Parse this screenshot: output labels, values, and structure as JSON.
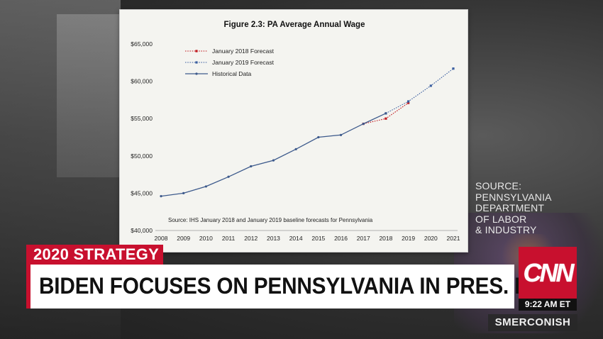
{
  "chart_data": {
    "type": "line",
    "title": "Figure 2.3:  PA Average Annual Wage",
    "source_note": "Source:  IHS January 2018 and January 2019 baseline forecasts for Pennsylvania",
    "x": [
      "2008",
      "2009",
      "2010",
      "2011",
      "2012",
      "2013",
      "2014",
      "2015",
      "2016",
      "2017",
      "2018",
      "2019",
      "2020",
      "2021"
    ],
    "ylim": [
      40000,
      65000
    ],
    "yticks": [
      "$40,000",
      "$45,000",
      "$50,000",
      "$55,000",
      "$60,000",
      "$65,000"
    ],
    "ytick_values": [
      40000,
      45000,
      50000,
      55000,
      60000,
      65000
    ],
    "legend_position": "top-left",
    "series": [
      {
        "name": "January 2018 Forecast",
        "color": "#c0191f",
        "style": "dotted",
        "points": [
          [
            "2017",
            54300
          ],
          [
            "2018",
            55000
          ],
          [
            "2019",
            57100
          ]
        ]
      },
      {
        "name": "January 2019 Forecast",
        "color": "#3b5fa0",
        "style": "dotted",
        "points": [
          [
            "2018",
            55700
          ],
          [
            "2019",
            57300
          ],
          [
            "2020",
            59400
          ],
          [
            "2021",
            61700
          ]
        ]
      },
      {
        "name": "Historical Data",
        "color": "#3d5a8c",
        "style": "solid",
        "points": [
          [
            "2008",
            44600
          ],
          [
            "2009",
            45000
          ],
          [
            "2010",
            45900
          ],
          [
            "2011",
            47200
          ],
          [
            "2012",
            48600
          ],
          [
            "2013",
            49400
          ],
          [
            "2014",
            50900
          ],
          [
            "2015",
            52500
          ],
          [
            "2016",
            52800
          ],
          [
            "2017",
            54300
          ],
          [
            "2018",
            55700
          ]
        ]
      }
    ]
  },
  "side_source": {
    "lines": [
      "SOURCE:",
      "PENNSYLVANIA",
      "DEPARTMENT",
      "OF LABOR",
      "& INDUSTRY"
    ]
  },
  "lower_third": {
    "tag": "2020 STRATEGY",
    "headline": "BIDEN FOCUSES ON PENNSYLVANIA IN PRES. BID",
    "logo_text": "CNN",
    "time": "9:22 AM ET",
    "show": "SMERCONISH"
  },
  "colors": {
    "cnn_red": "#c8102e"
  }
}
